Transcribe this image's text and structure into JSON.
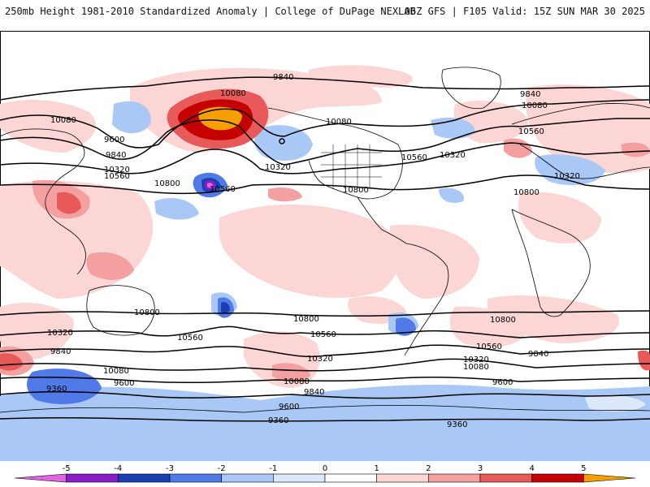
{
  "header": {
    "title": "250mb Height 1981-2010 Standardized Anomaly | College of DuPage NEXLAB",
    "run_info": "06Z GFS | F105 Valid: 15Z SUN MAR 30 2025"
  },
  "contour_labels": [
    "9840",
    "10080",
    "10080",
    "9600",
    "9840",
    "10320",
    "10560",
    "10800",
    "10560",
    "10320",
    "10800",
    "10560",
    "10080",
    "10320",
    "9840",
    "10080",
    "10560",
    "10320",
    "10800",
    "10800",
    "10560",
    "10320",
    "9840",
    "9360",
    "10800",
    "10560",
    "10320",
    "10080",
    "9600",
    "9840",
    "9600",
    "9360",
    "10800",
    "10560",
    "10320",
    "10800",
    "10560",
    "10320",
    "10080",
    "9840",
    "9600",
    "9360"
  ],
  "colorbar": {
    "ticks": [
      "-5",
      "-4",
      "-3",
      "-2",
      "-1",
      "0",
      "1",
      "2",
      "3",
      "4",
      "5"
    ],
    "colors": [
      "#e066e0",
      "#8a1cc7",
      "#1a3fb0",
      "#4f7ae8",
      "#a9c8f5",
      "#dde9fb",
      "#ffffff",
      "#fcd5d5",
      "#f4a0a0",
      "#e85a5a",
      "#c40000",
      "#f5a000"
    ]
  }
}
